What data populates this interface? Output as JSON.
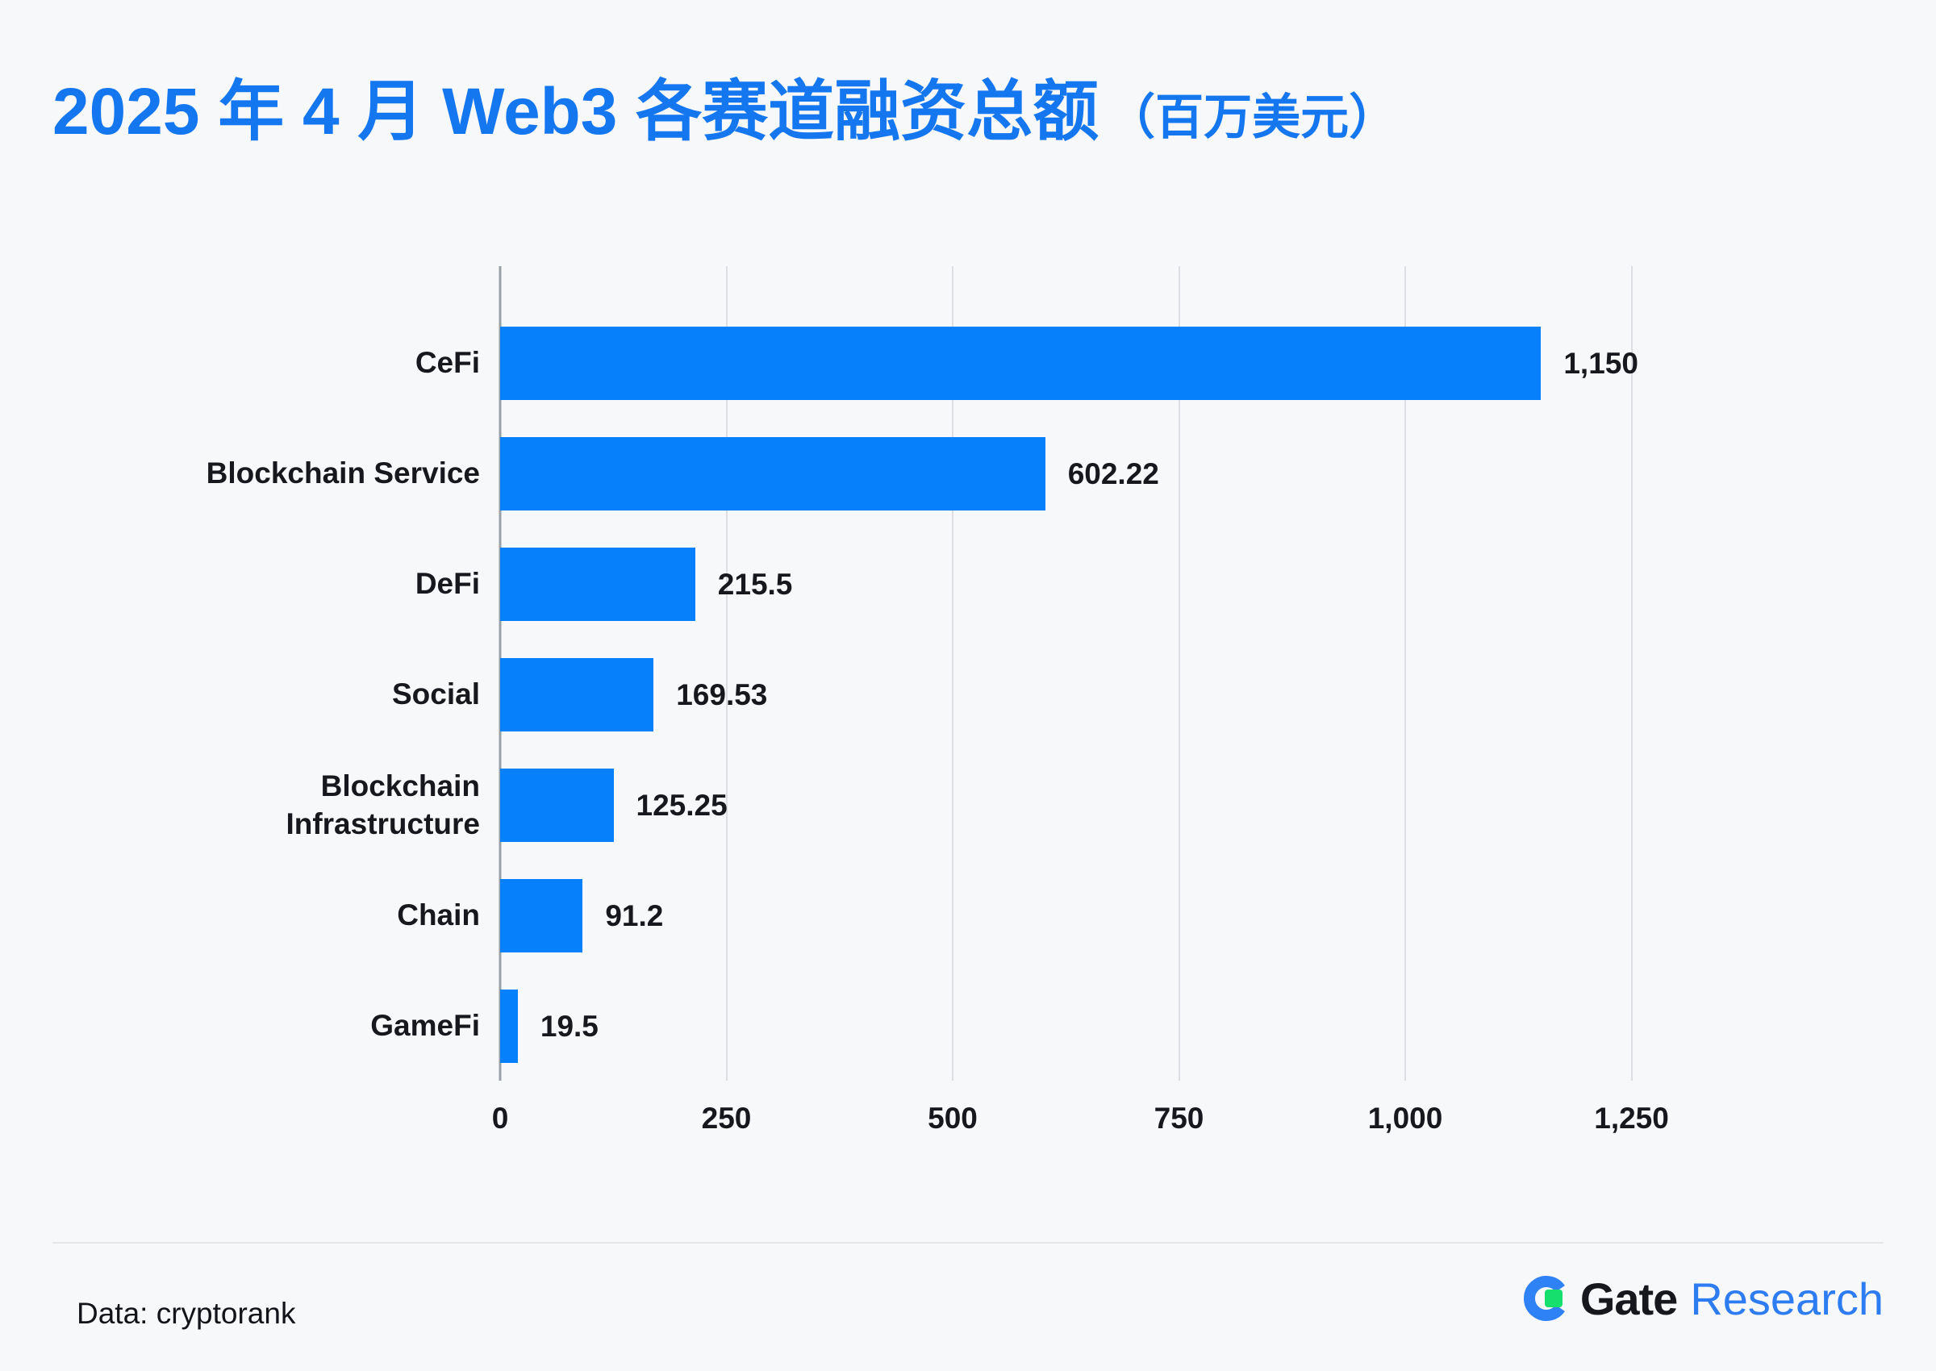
{
  "header": {
    "title": "2025 年 4 月 Web3 各赛道融资总额",
    "unit": "（百万美元）",
    "title_color": "#1577f0"
  },
  "chart_data": {
    "type": "bar",
    "orientation": "horizontal",
    "title": "2025 年 4 月 Web3 各赛道融资总额（百万美元）",
    "categories": [
      "CeFi",
      "Blockchain Service",
      "DeFi",
      "Social",
      "Blockchain\nInfrastructure",
      "Chain",
      "GameFi"
    ],
    "values": [
      1150,
      602.22,
      215.5,
      169.53,
      125.25,
      91.2,
      19.5
    ],
    "value_labels": [
      "1,150",
      "602.22",
      "215.5",
      "169.53",
      "125.25",
      "91.2",
      "19.5"
    ],
    "x_ticks": [
      0,
      250,
      500,
      750,
      1000,
      1250
    ],
    "x_tick_labels": [
      "0",
      "250",
      "500",
      "750",
      "1,000",
      "1,250"
    ],
    "xlim": [
      0,
      1250
    ],
    "grid": "vertical-only",
    "legend": "none",
    "bar_color": "#0780fb",
    "text_color": "#16181d"
  },
  "footer": {
    "source": "Data: cryptorank",
    "logo": {
      "brand": "Gate",
      "suffix": "Research",
      "brand_color": "#17181d",
      "suffix_color": "#2e7cf2",
      "mark_blue": "#2f82f6",
      "mark_green": "#17df6e"
    }
  }
}
